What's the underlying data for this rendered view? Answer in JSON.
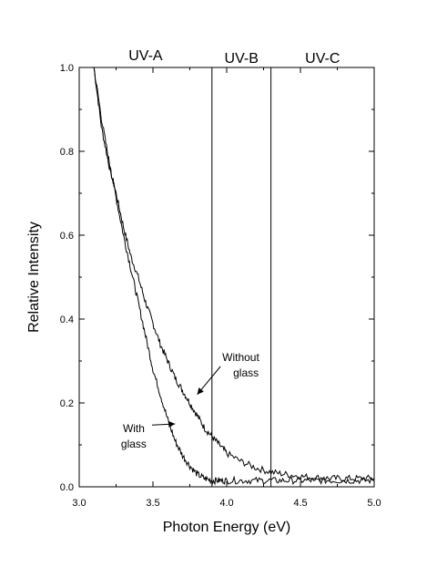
{
  "chart_data": {
    "type": "line",
    "xlabel": "Photon Energy (eV)",
    "ylabel": "Relative Intensity",
    "xlim": [
      3.0,
      5.0
    ],
    "ylim": [
      0.0,
      1.0
    ],
    "x_ticks": [
      "3.0",
      "3.5",
      "4.0",
      "4.5",
      "5.0"
    ],
    "y_ticks": [
      "0.0",
      "0.2",
      "0.4",
      "0.6",
      "0.8",
      "1.0"
    ],
    "grid": false,
    "bands": [
      {
        "label": "UV-A",
        "label_x": 3.45
      },
      {
        "label": "UV-B",
        "label_x": 4.1
      },
      {
        "label": "UV-C",
        "label_x": 4.65
      }
    ],
    "band_boundaries": [
      3.9,
      4.3
    ],
    "annotations": [
      {
        "lines": [
          "Without",
          "glass"
        ],
        "text_x": 3.97,
        "text_y": 0.3,
        "arrow_to_x": 3.8,
        "arrow_to_y": 0.22
      },
      {
        "lines": [
          "With",
          "glass"
        ],
        "text_x": 3.37,
        "text_y": 0.13,
        "arrow_to_x": 3.65,
        "arrow_to_y": 0.15
      }
    ],
    "series": [
      {
        "x": [
          3.1,
          3.15,
          3.2,
          3.25,
          3.3,
          3.35,
          3.4,
          3.45,
          3.5,
          3.55,
          3.6,
          3.65,
          3.7,
          3.75,
          3.8,
          3.85,
          3.9,
          3.95,
          4.0,
          4.1,
          4.2,
          4.3,
          4.4,
          4.5,
          4.6,
          4.7,
          4.8,
          4.9,
          5.0
        ],
        "y": [
          1.0,
          0.86,
          0.77,
          0.7,
          0.62,
          0.55,
          0.5,
          0.44,
          0.39,
          0.34,
          0.3,
          0.26,
          0.23,
          0.2,
          0.17,
          0.14,
          0.12,
          0.1,
          0.08,
          0.06,
          0.045,
          0.035,
          0.03,
          0.025,
          0.022,
          0.02,
          0.02,
          0.02,
          0.02
        ]
      },
      {
        "x": [
          3.1,
          3.15,
          3.2,
          3.25,
          3.3,
          3.35,
          3.4,
          3.45,
          3.5,
          3.55,
          3.6,
          3.65,
          3.7,
          3.75,
          3.8,
          3.85,
          3.9,
          3.95,
          4.0,
          4.1,
          4.2,
          4.3,
          4.4,
          4.5,
          4.6,
          4.7,
          4.8,
          4.9,
          5.0
        ],
        "y": [
          1.0,
          0.88,
          0.78,
          0.69,
          0.6,
          0.52,
          0.44,
          0.36,
          0.28,
          0.22,
          0.16,
          0.11,
          0.075,
          0.05,
          0.03,
          0.02,
          0.015,
          0.015,
          0.015,
          0.015,
          0.015,
          0.015,
          0.015,
          0.015,
          0.015,
          0.015,
          0.015,
          0.015,
          0.015
        ]
      }
    ]
  }
}
